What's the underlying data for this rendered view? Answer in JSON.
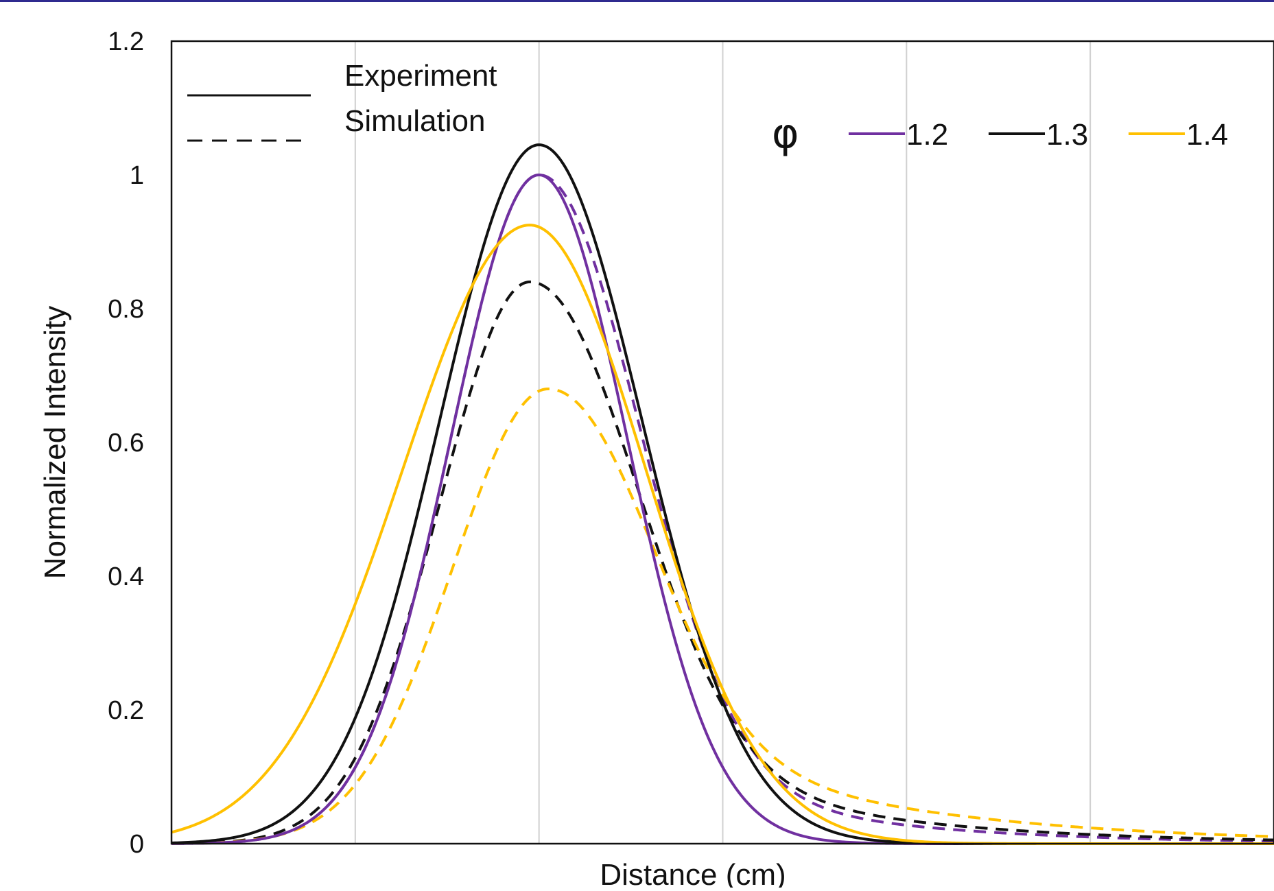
{
  "chart_data": {
    "type": "line",
    "title": "",
    "xlabel": "Distance (cm)",
    "ylabel": "Normalized Intensity",
    "xlim": [
      -2.0,
      4.0
    ],
    "ylim": [
      0,
      1.2
    ],
    "y_ticks": [
      "0",
      "0.2",
      "0.4",
      "0.6",
      "0.8",
      "1",
      "1.2"
    ],
    "x_tick_labels_shown": false,
    "grid": "vertical lines",
    "legend_style": {
      "solid_label": "Experiment",
      "dashed_label": "Simulation",
      "placement": "top-left"
    },
    "legend_phi": {
      "symbol": "φ",
      "placement": "top-right",
      "entries": [
        {
          "label": "1.2",
          "color": "#7030a0"
        },
        {
          "label": "1.3",
          "color": "#111111"
        },
        {
          "label": "1.4",
          "color": "#ffc000"
        }
      ]
    },
    "series": [
      {
        "phi": "1.2",
        "kind": "Experiment",
        "color": "#7030a0",
        "dashed": false,
        "peak": 1.0,
        "center": 0.0,
        "sigma_left": 0.48,
        "sigma_right": 0.48,
        "tail_amp": 0.0,
        "tail_decay": 1.0
      },
      {
        "phi": "1.3",
        "kind": "Experiment",
        "color": "#111111",
        "dashed": false,
        "peak": 1.045,
        "center": 0.0,
        "sigma_left": 0.54,
        "sigma_right": 0.56,
        "tail_amp": 0.0,
        "tail_decay": 1.0
      },
      {
        "phi": "1.4",
        "kind": "Experiment",
        "color": "#ffc000",
        "dashed": false,
        "peak": 0.925,
        "center": -0.05,
        "sigma_left": 0.69,
        "sigma_right": 0.63,
        "tail_amp": 0.0,
        "tail_decay": 1.0
      },
      {
        "phi": "1.2",
        "kind": "Simulation",
        "color": "#7030a0",
        "dashed": true,
        "peak": 1.0,
        "center": 0.0,
        "sigma_left": 0.48,
        "sigma_right": 0.52,
        "tail_amp": 0.2,
        "tail_decay": 1.0
      },
      {
        "phi": "1.3",
        "kind": "Simulation",
        "color": "#111111",
        "dashed": true,
        "peak": 0.84,
        "center": -0.05,
        "sigma_left": 0.49,
        "sigma_right": 0.55,
        "tail_amp": 0.22,
        "tail_decay": 1.1
      },
      {
        "phi": "1.4",
        "kind": "Simulation",
        "color": "#ffc000",
        "dashed": true,
        "peak": 0.68,
        "center": 0.05,
        "sigma_left": 0.52,
        "sigma_right": 0.52,
        "tail_amp": 0.25,
        "tail_decay": 1.25
      }
    ]
  }
}
